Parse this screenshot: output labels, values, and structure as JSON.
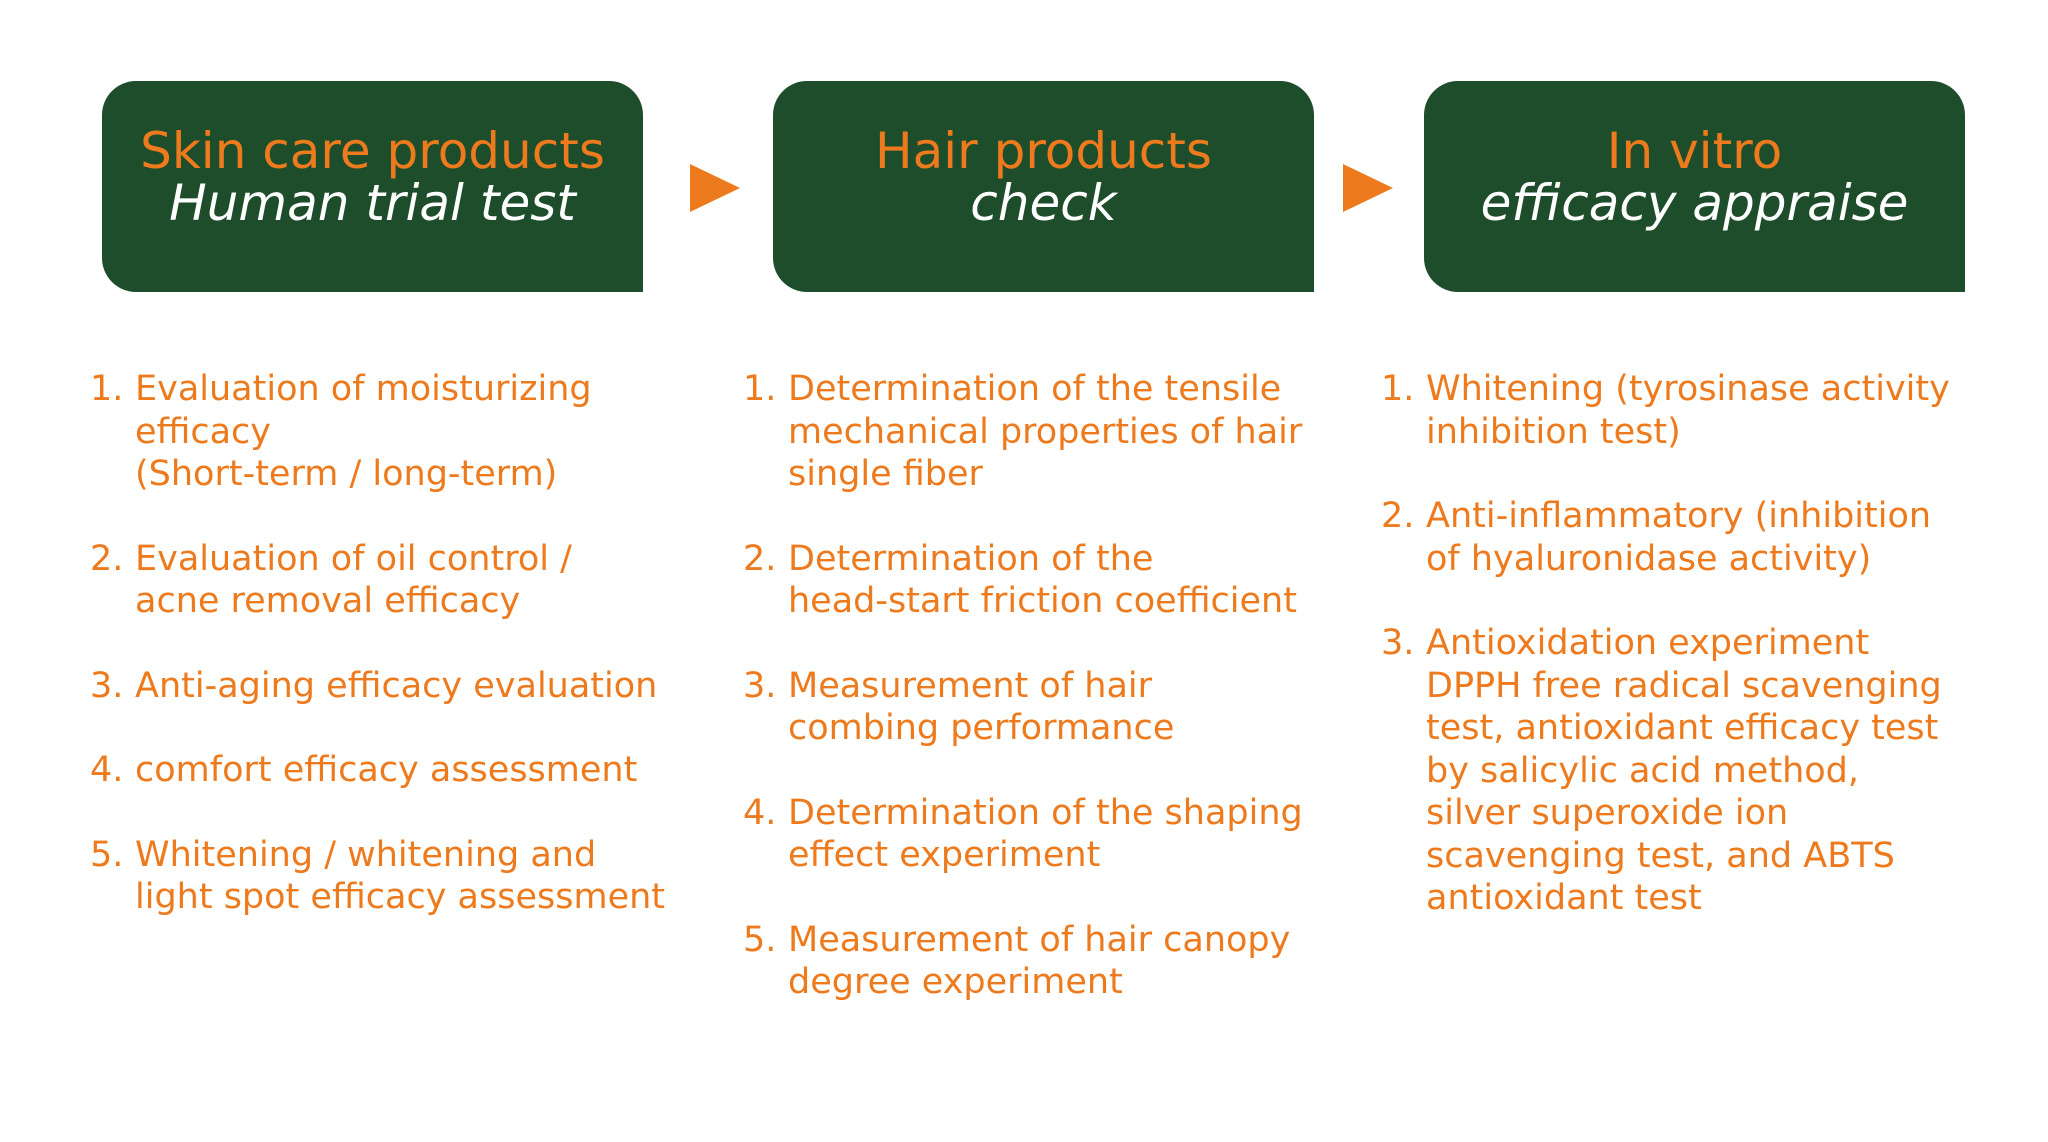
{
  "colors": {
    "box_fill": "#1e4d2b",
    "accent": "#ee7a1e",
    "subtitle": "#ffffff",
    "background": "#ffffff"
  },
  "columns": [
    {
      "title": "Skin care products",
      "subtitle": "Human trial test",
      "items": [
        {
          "num": "1.",
          "lines": [
            "Evaluation of moisturizing",
            "efficacy",
            "(Short-term / long-term)"
          ]
        },
        {
          "num": "2.",
          "lines": [
            "Evaluation of oil control /",
            "acne removal efficacy"
          ]
        },
        {
          "num": "3.",
          "lines": [
            "Anti-aging efficacy evaluation"
          ]
        },
        {
          "num": "4.",
          "lines": [
            "comfort efficacy assessment"
          ]
        },
        {
          "num": "5.",
          "lines": [
            "Whitening / whitening and",
            "light spot efficacy assessment"
          ]
        }
      ]
    },
    {
      "title": "Hair products",
      "subtitle": "check",
      "items": [
        {
          "num": "1.",
          "lines": [
            "Determination of the tensile",
            "mechanical properties of hair",
            "single fiber"
          ]
        },
        {
          "num": "2.",
          "lines": [
            "Determination of the",
            "head-start friction coefficient"
          ]
        },
        {
          "num": "3.",
          "lines": [
            "Measurement of hair",
            "combing performance"
          ]
        },
        {
          "num": "4.",
          "lines": [
            "Determination of the shaping",
            "effect experiment"
          ]
        },
        {
          "num": "5.",
          "lines": [
            "Measurement of hair canopy",
            "degree experiment"
          ]
        }
      ]
    },
    {
      "title": "In vitro",
      "subtitle": "efficacy appraise",
      "items": [
        {
          "num": "1.",
          "lines": [
            "Whitening (tyrosinase activity",
            "inhibition test)"
          ]
        },
        {
          "num": "2.",
          "lines": [
            "Anti-inflammatory (inhibition",
            "of hyaluronidase activity)"
          ]
        },
        {
          "num": "3.",
          "lines": [
            "Antioxidation experiment",
            "DPPH free radical scavenging",
            "test, antioxidant efficacy test",
            "by salicylic acid method,",
            "silver superoxide ion",
            "scavenging test, and ABTS",
            "antioxidant test"
          ]
        }
      ]
    }
  ]
}
